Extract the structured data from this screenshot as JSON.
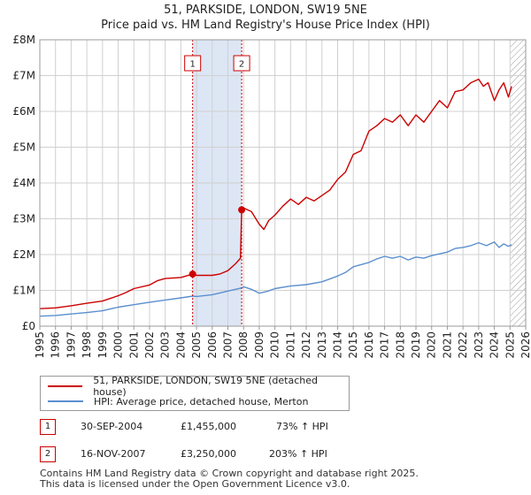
{
  "title_line1": "51, PARKSIDE, LONDON, SW19 5NE",
  "title_line2": "Price paid vs. HM Land Registry's House Price Index (HPI)",
  "legend": {
    "series1": "51, PARKSIDE, LONDON, SW19 5NE (detached house)",
    "series2": "HPI: Average price, detached house, Merton"
  },
  "transactions": [
    {
      "num": "1",
      "date": "30-SEP-2004",
      "price": "£1,455,000",
      "hpi": "73% ↑ HPI"
    },
    {
      "num": "2",
      "date": "16-NOV-2007",
      "price": "£3,250,000",
      "hpi": "203% ↑ HPI"
    }
  ],
  "footer_line1": "Contains HM Land Registry data © Crown copyright and database right 2025.",
  "footer_line2": "This data is licensed under the Open Government Licence v3.0.",
  "colors": {
    "property": "#cc0000",
    "hpi": "#5b8fcf",
    "band": "#dde6f5",
    "grid": "#d0d0d0"
  },
  "chart_data": {
    "type": "line",
    "title": "51, PARKSIDE, LONDON, SW19 5NE — Price paid vs. HM Land Registry's House Price Index (HPI)",
    "xlabel": "",
    "ylabel": "",
    "xlim": [
      1995,
      2026
    ],
    "ylim": [
      0,
      8000000
    ],
    "x_ticks": [
      "1995",
      "1996",
      "1997",
      "1998",
      "1999",
      "2000",
      "2001",
      "2002",
      "2003",
      "2004",
      "2005",
      "2006",
      "2007",
      "2008",
      "2009",
      "2010",
      "2011",
      "2012",
      "2013",
      "2014",
      "2015",
      "2016",
      "2017",
      "2018",
      "2019",
      "2020",
      "2021",
      "2022",
      "2023",
      "2024",
      "2025",
      "2026"
    ],
    "y_ticks": [
      {
        "value": 0,
        "label": "£0"
      },
      {
        "value": 1000000,
        "label": "£1M"
      },
      {
        "value": 2000000,
        "label": "£2M"
      },
      {
        "value": 3000000,
        "label": "£3M"
      },
      {
        "value": 4000000,
        "label": "£4M"
      },
      {
        "value": 5000000,
        "label": "£5M"
      },
      {
        "value": 6000000,
        "label": "£6M"
      },
      {
        "value": 7000000,
        "label": "£7M"
      },
      {
        "value": 8000000,
        "label": "£8M"
      }
    ],
    "shaded_ranges": [
      [
        2004.75,
        2007.88
      ]
    ],
    "hatched_range": [
      2025.0,
      2026.0
    ],
    "markers": [
      {
        "label": "1",
        "x": 2004.75,
        "y": 1455000
      },
      {
        "label": "2",
        "x": 2007.88,
        "y": 3250000
      }
    ],
    "series": [
      {
        "name": "51, PARKSIDE, LONDON, SW19 5NE (detached house)",
        "color": "#cc0000",
        "x": [
          1995,
          1996,
          1997,
          1998,
          1999,
          2000,
          2000.5,
          2001,
          2002,
          2002.5,
          2003,
          2004,
          2004.75,
          2005,
          2006,
          2006.5,
          2007,
          2007.5,
          2007.8,
          2007.88,
          2008,
          2008.5,
          2009,
          2009.3,
          2009.6,
          2010,
          2010.5,
          2011,
          2011.5,
          2012,
          2012.5,
          2013,
          2013.5,
          2014,
          2014.5,
          2015,
          2015.5,
          2016,
          2016.5,
          2017,
          2017.5,
          2018,
          2018.5,
          2019,
          2019.5,
          2020,
          2020.5,
          2021,
          2021.5,
          2022,
          2022.5,
          2023,
          2023.3,
          2023.6,
          2024,
          2024.3,
          2024.6,
          2024.9,
          2025.1
        ],
        "y": [
          490000,
          510000,
          570000,
          640000,
          700000,
          850000,
          940000,
          1050000,
          1150000,
          1270000,
          1330000,
          1360000,
          1455000,
          1420000,
          1420000,
          1460000,
          1550000,
          1750000,
          1900000,
          3250000,
          3300000,
          3200000,
          2850000,
          2700000,
          2950000,
          3100000,
          3350000,
          3550000,
          3400000,
          3600000,
          3500000,
          3650000,
          3800000,
          4100000,
          4300000,
          4800000,
          4900000,
          5450000,
          5600000,
          5800000,
          5700000,
          5900000,
          5600000,
          5900000,
          5700000,
          6000000,
          6300000,
          6100000,
          6550000,
          6600000,
          6800000,
          6900000,
          6700000,
          6800000,
          6300000,
          6600000,
          6800000,
          6400000,
          6700000
        ]
      },
      {
        "name": "HPI: Average price, detached house, Merton",
        "color": "#5b8fcf",
        "x": [
          1995,
          1996,
          1997,
          1998,
          1999,
          2000,
          2001,
          2002,
          2003,
          2004,
          2004.75,
          2005,
          2006,
          2007,
          2007.88,
          2008,
          2008.5,
          2009,
          2009.5,
          2010,
          2011,
          2012,
          2013,
          2014,
          2014.5,
          2015,
          2016,
          2016.5,
          2017,
          2017.5,
          2018,
          2018.5,
          2019,
          2019.5,
          2020,
          2020.5,
          2021,
          2021.5,
          2022,
          2022.5,
          2023,
          2023.5,
          2024,
          2024.3,
          2024.6,
          2024.9,
          2025.1
        ],
        "y": [
          280000,
          300000,
          340000,
          380000,
          430000,
          530000,
          600000,
          670000,
          730000,
          790000,
          840000,
          830000,
          880000,
          980000,
          1070000,
          1100000,
          1030000,
          920000,
          970000,
          1050000,
          1120000,
          1160000,
          1240000,
          1400000,
          1500000,
          1660000,
          1780000,
          1880000,
          1950000,
          1900000,
          1950000,
          1850000,
          1930000,
          1900000,
          1970000,
          2020000,
          2070000,
          2170000,
          2200000,
          2250000,
          2330000,
          2250000,
          2350000,
          2200000,
          2300000,
          2230000,
          2280000
        ]
      }
    ]
  }
}
